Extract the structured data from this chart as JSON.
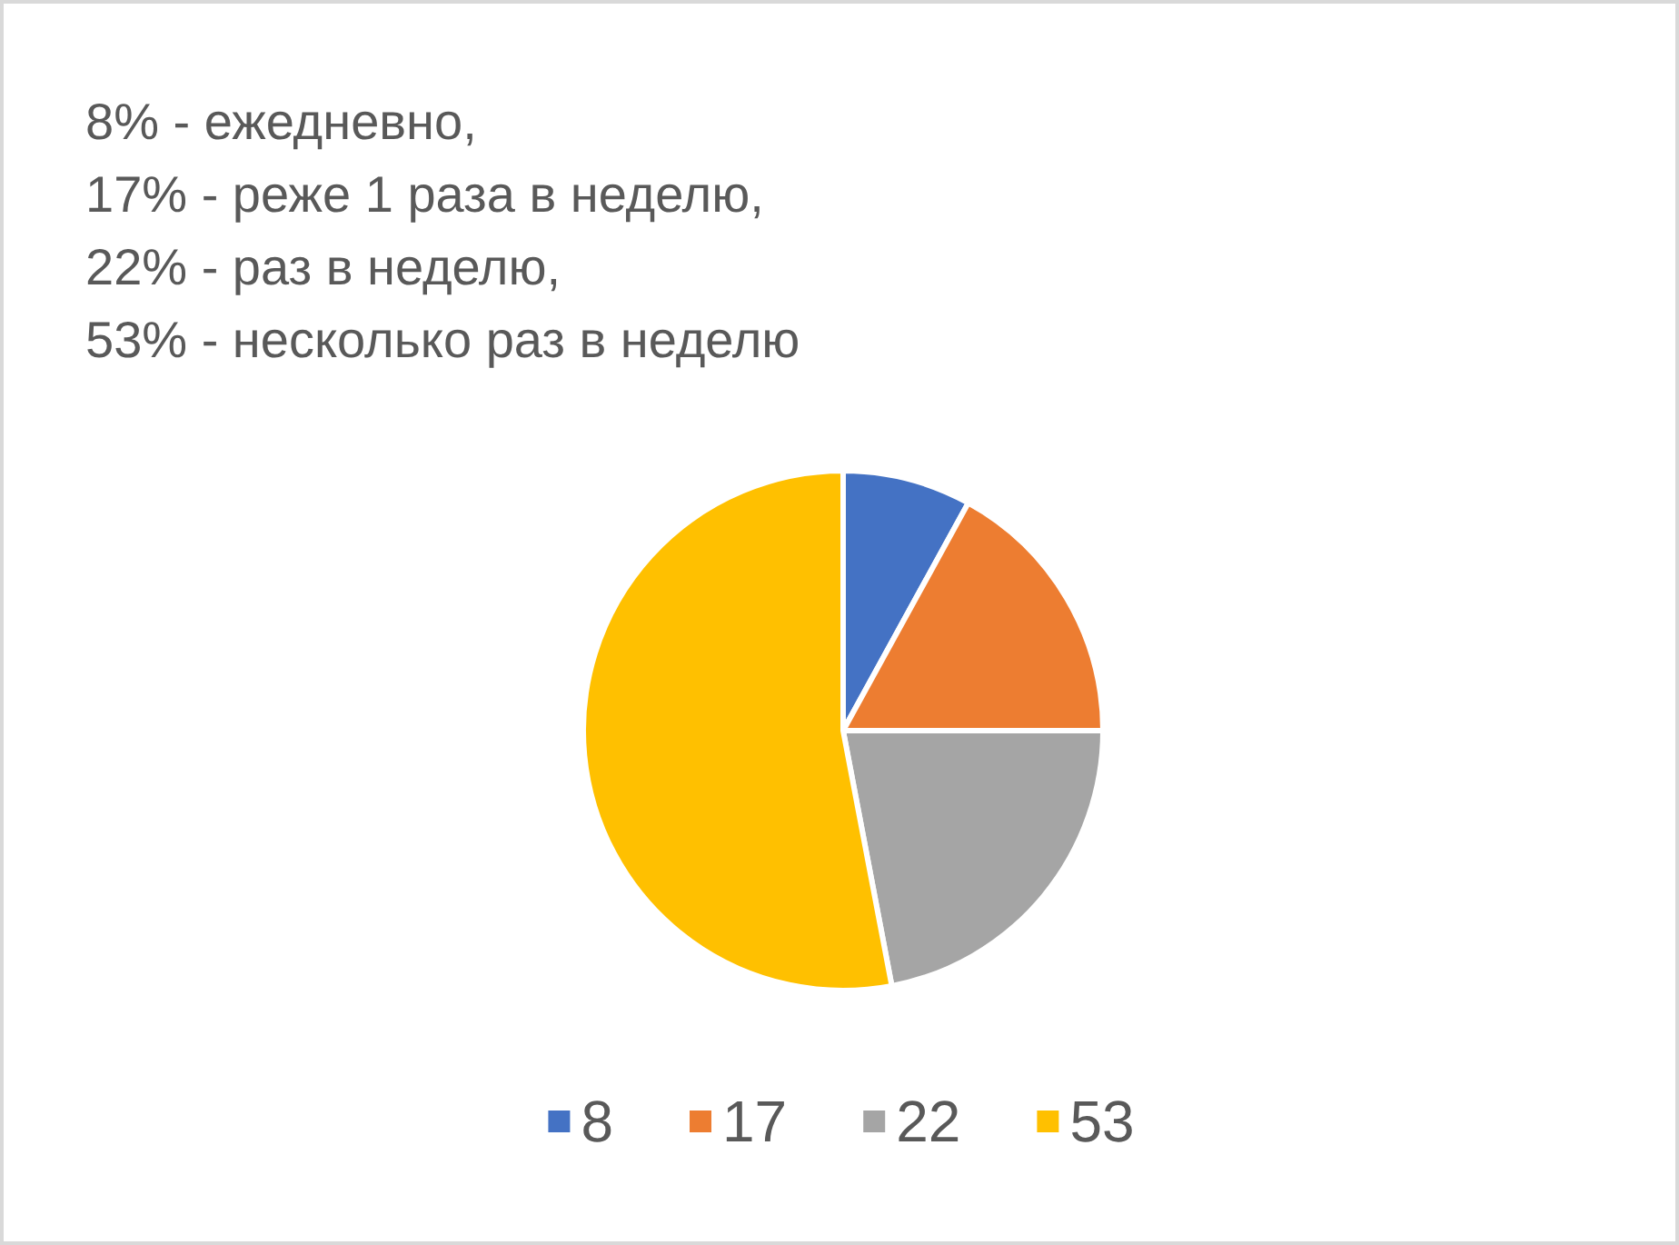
{
  "chart_data": {
    "type": "pie",
    "title": "8% - ежедневно,\n17% - реже 1 раза в неделю,\n22% - раз в неделю,\n53% - несколько раз в неделю",
    "categories": [
      "8",
      "17",
      "22",
      "53"
    ],
    "values": [
      8,
      17,
      22,
      53
    ],
    "colors": [
      "#4472c4",
      "#ed7d31",
      "#a5a5a5",
      "#ffc000"
    ],
    "legend": "bottom"
  }
}
